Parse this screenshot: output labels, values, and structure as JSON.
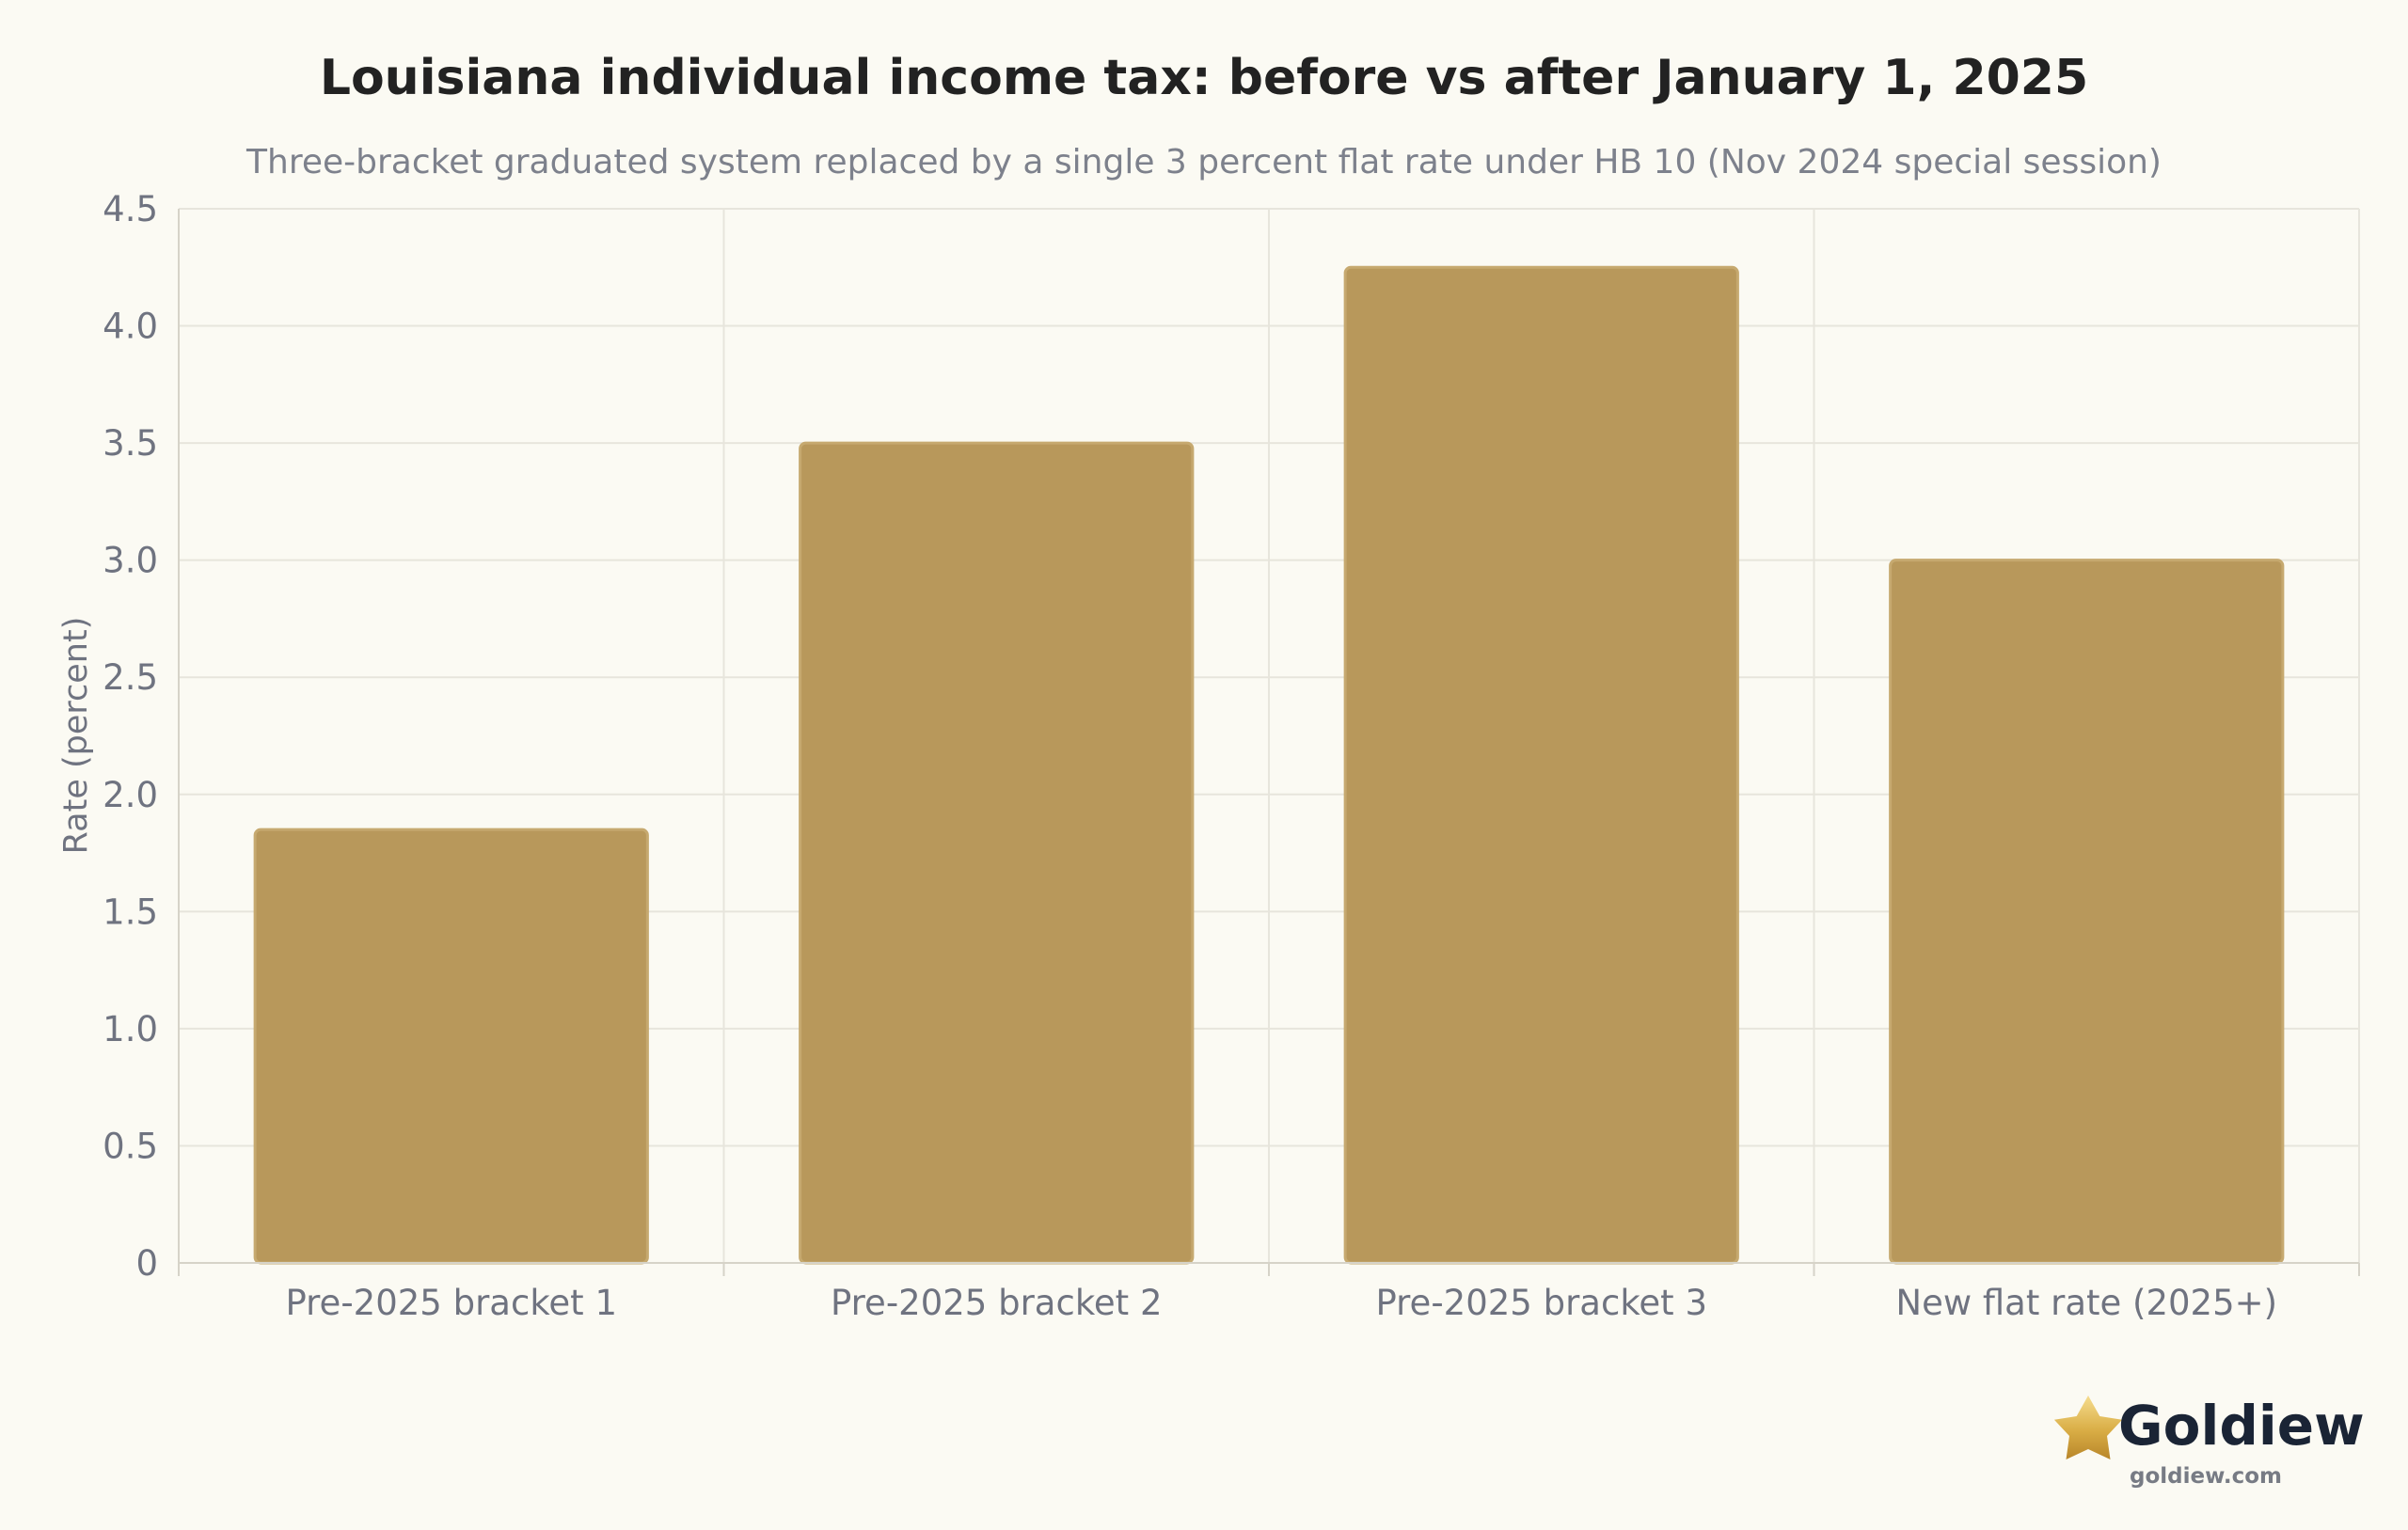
{
  "chart_data": {
    "type": "bar",
    "title": "Louisiana individual income tax: before vs after January 1, 2025",
    "subtitle": "Three-bracket graduated system replaced by a single 3 percent flat rate under HB 10 (Nov 2024 special session)",
    "xlabel": "",
    "ylabel": "Rate (percent)",
    "categories": [
      "Pre-2025 bracket 1",
      "Pre-2025 bracket 2",
      "Pre-2025 bracket 3",
      "New flat rate (2025+)"
    ],
    "values": [
      1.85,
      3.5,
      4.25,
      3.0
    ],
    "ylim": [
      0,
      4.5
    ],
    "y_ticks": [
      0,
      0.5,
      1.0,
      1.5,
      2.0,
      2.5,
      3.0,
      3.5,
      4.0,
      4.5
    ],
    "y_tick_labels": [
      "0",
      "0.5",
      "1.0",
      "1.5",
      "2.0",
      "2.5",
      "3.0",
      "3.5",
      "4.0",
      "4.5"
    ],
    "grid": true,
    "legend": "none",
    "colors": {
      "bar": "#b8985b",
      "background": "#fbfaf3"
    }
  },
  "branding": {
    "logo_icon": "star-icon",
    "name": "Goldiew",
    "url": "goldiew.com"
  }
}
